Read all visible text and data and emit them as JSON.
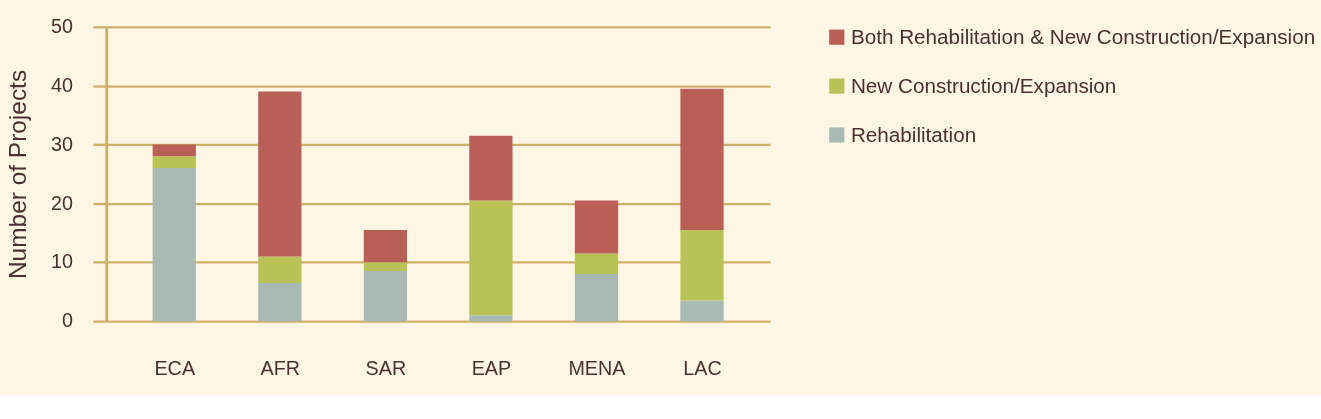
{
  "chart_data": {
    "type": "bar",
    "stacked": true,
    "ylabel": "Number of Projects",
    "categories": [
      "ECA",
      "AFR",
      "SAR",
      "EAP",
      "MENA",
      "LAC"
    ],
    "series": [
      {
        "name": "Rehabilitation",
        "color": "#a8bab3",
        "values": [
          26,
          6.5,
          8.5,
          1,
          8,
          3.5
        ]
      },
      {
        "name": "New Construction/Expansion",
        "color": "#b8c256",
        "values": [
          2,
          4.5,
          1.5,
          19.5,
          3.5,
          12
        ]
      },
      {
        "name": "Both Rehabilitation & New Construction/Expansion",
        "color": "#b95f56",
        "values": [
          2,
          28,
          5.5,
          11,
          9,
          24
        ]
      }
    ],
    "ylim": [
      0,
      50
    ],
    "yticks": [
      0,
      10,
      20,
      30,
      40,
      50
    ],
    "grid": "y",
    "legend": "right"
  }
}
